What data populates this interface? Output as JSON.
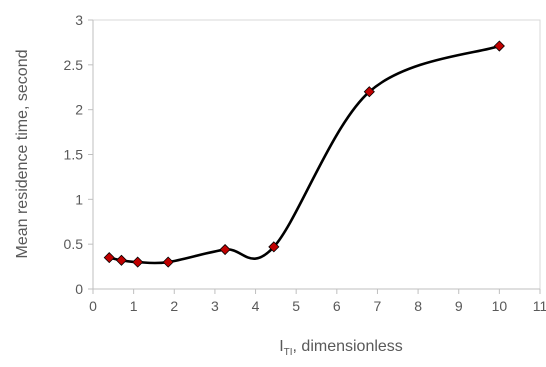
{
  "chart_data": {
    "type": "line",
    "xlabel_main": "I",
    "xlabel_sub": "TI",
    "xlabel_rest": ", dimensionless",
    "ylabel": "Mean residence time, second",
    "xlim": [
      0,
      11
    ],
    "ylim": [
      0,
      3
    ],
    "x_ticks": [
      "0",
      "1",
      "2",
      "3",
      "4",
      "5",
      "6",
      "7",
      "8",
      "9",
      "10",
      "11"
    ],
    "y_ticks": [
      "0",
      "0.5",
      "1",
      "1.5",
      "2",
      "2.5",
      "3"
    ],
    "grid": false,
    "legend": "none",
    "series": [
      {
        "x": [
          0.4,
          0.7,
          1.1,
          1.85,
          3.25,
          4.45,
          6.8,
          10.0
        ],
        "y": [
          0.35,
          0.32,
          0.3,
          0.3,
          0.44,
          0.47,
          2.2,
          2.71
        ],
        "line_color": "#000000",
        "marker_color": "#c00000",
        "marker": "diamond",
        "smooth": true
      }
    ]
  }
}
